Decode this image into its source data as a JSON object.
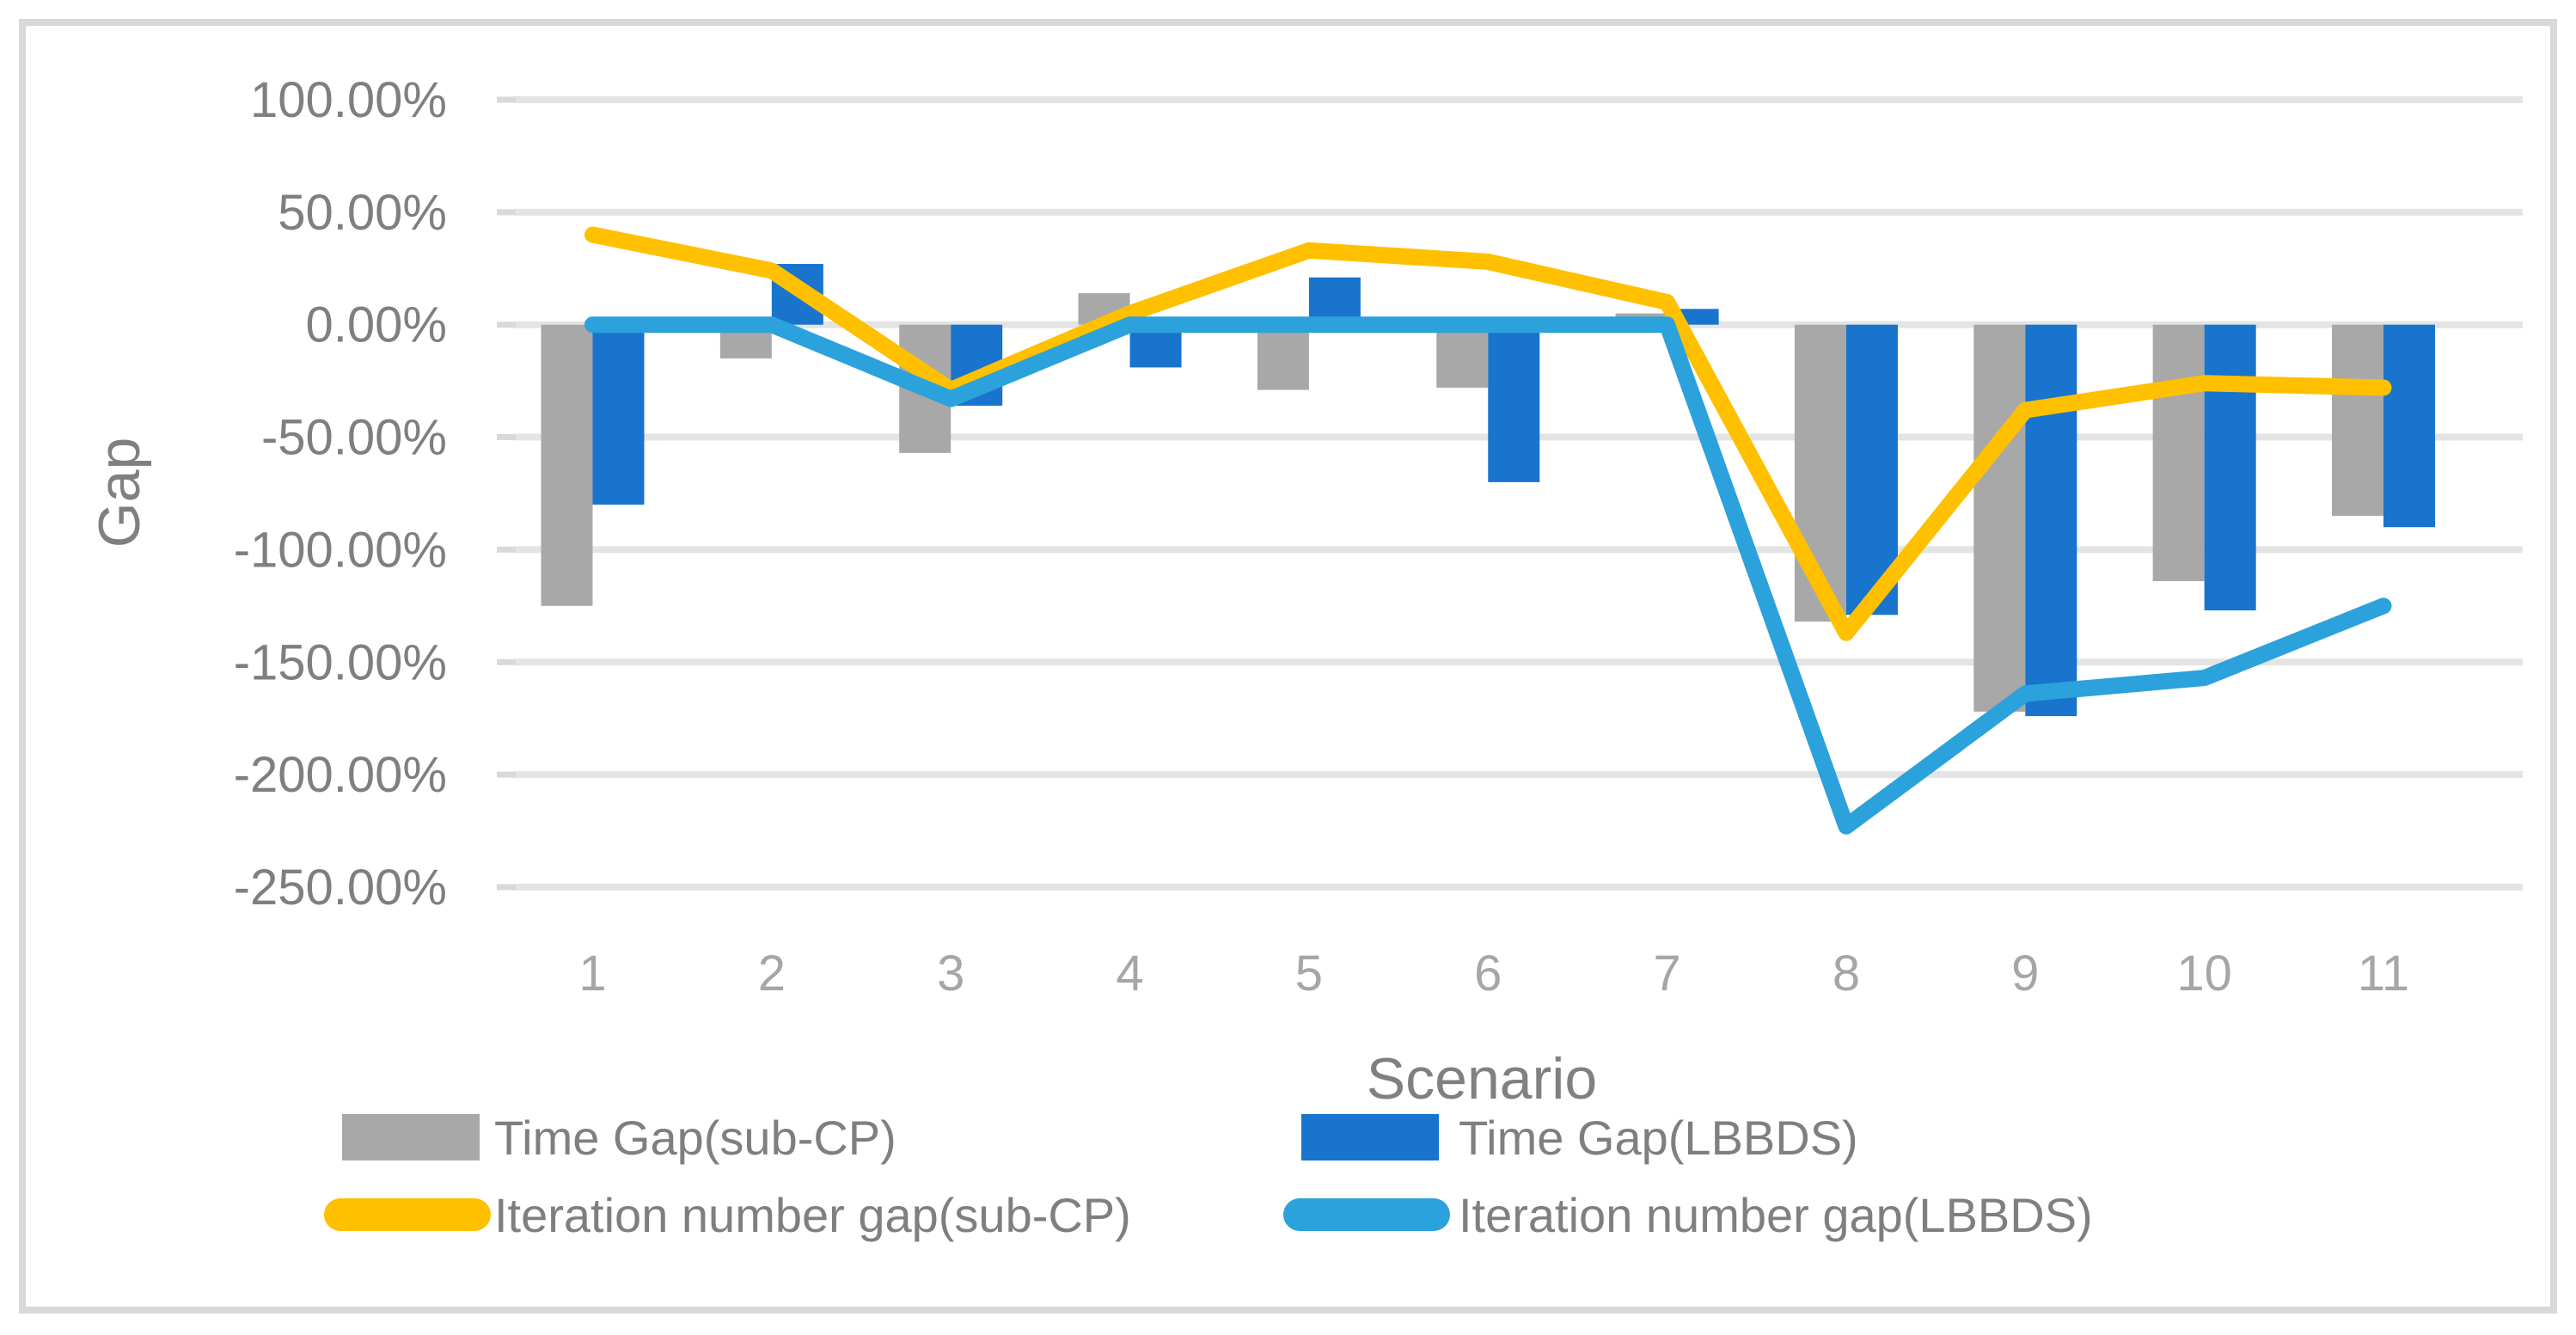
{
  "chart_data": {
    "type": "combo-bar-line",
    "title": "",
    "xlabel": "Scenario",
    "ylabel": "Gap",
    "legend_position": "bottom",
    "grid": true,
    "categories": [
      "1",
      "2",
      "3",
      "4",
      "5",
      "6",
      "7",
      "8",
      "9",
      "10",
      "11"
    ],
    "y_axis": {
      "min": -250,
      "max": 100,
      "step": 50,
      "unit": "percent"
    },
    "y_ticks": [
      {
        "value": 100,
        "label": "100.00%"
      },
      {
        "value": 50,
        "label": "50.00%"
      },
      {
        "value": 0,
        "label": "0.00%"
      },
      {
        "value": -50,
        "label": "-50.00%"
      },
      {
        "value": -100,
        "label": "-100.00%"
      },
      {
        "value": -150,
        "label": "-150.00%"
      },
      {
        "value": -200,
        "label": "-200.00%"
      },
      {
        "value": -250,
        "label": "-250.00%"
      }
    ],
    "series": [
      {
        "name": "Time Gap(sub-CP)",
        "type": "bar",
        "color": "#A8A8A8",
        "values": [
          -125,
          -15,
          -57,
          14,
          -29,
          -28,
          5,
          -132,
          -172,
          -114,
          -85
        ]
      },
      {
        "name": "Time Gap(LBBDS)",
        "type": "bar",
        "color": "#1874CD",
        "values": [
          -80,
          27,
          -36,
          -19,
          21,
          -70,
          7,
          -129,
          -174,
          -127,
          -90
        ]
      },
      {
        "name": "Iteration number gap(sub-CP)",
        "type": "line",
        "color": "#FFC000",
        "values": [
          40,
          24,
          -29,
          5,
          33,
          28,
          10,
          -137,
          -38,
          -26,
          -28
        ]
      },
      {
        "name": "Iteration number gap(LBBDS)",
        "type": "line",
        "color": "#2BA2DB",
        "values": [
          0,
          0,
          -33,
          0,
          0,
          0,
          0,
          -223,
          -164,
          -157,
          -125
        ]
      }
    ],
    "colors": {
      "gridline": "#E4E4E4",
      "tick_mark": "#D9D9D9",
      "frame_border": "#D8D8D8",
      "axis_tick_text": "#7F7F7F",
      "category_text": "#A6A6A6",
      "axis_title_text": "#808080",
      "legend_text": "#7F7F7F",
      "background": "#FFFFFF"
    }
  }
}
